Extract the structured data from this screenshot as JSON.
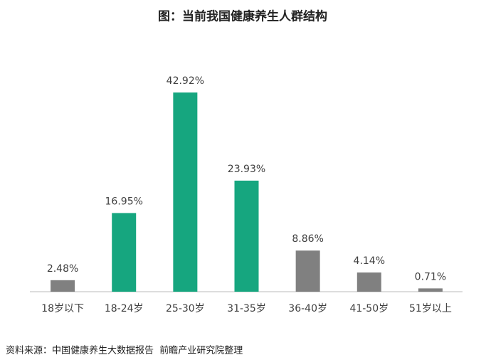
{
  "chart_data": {
    "type": "bar",
    "title": "图：当前我国健康养生人群结构",
    "categories": [
      "18岁以下",
      "18-24岁",
      "25-30岁",
      "31-35岁",
      "36-40岁",
      "41-50岁",
      "51岁以上"
    ],
    "values": [
      2.48,
      16.95,
      42.92,
      23.93,
      8.86,
      4.14,
      0.71
    ],
    "value_labels": [
      "2.48%",
      "16.95%",
      "42.92%",
      "23.93%",
      "8.86%",
      "4.14%",
      "0.71%"
    ],
    "colors": [
      "#808080",
      "#16a67f",
      "#16a67f",
      "#16a67f",
      "#808080",
      "#808080",
      "#808080"
    ],
    "source": "资料来源：中国健康养生大数据报告  前瞻产业研究院整理"
  }
}
